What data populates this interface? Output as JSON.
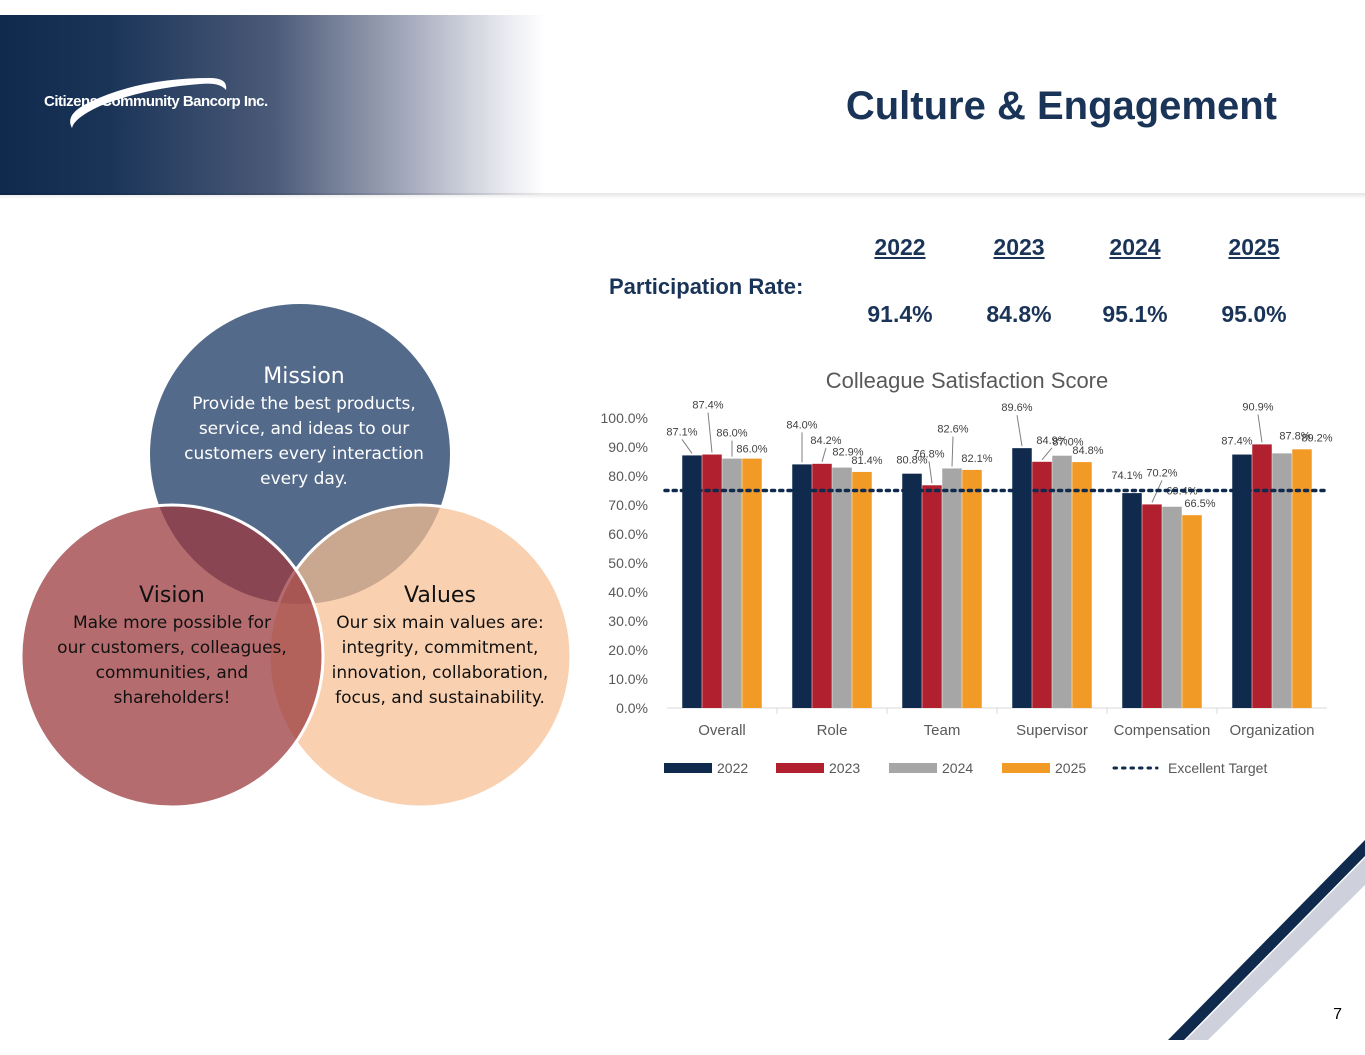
{
  "header": {
    "logo_text": "Citizens Community Bancorp Inc.",
    "title": "Culture & Engagement"
  },
  "participation": {
    "label": "Participation Rate:",
    "years": [
      "2022",
      "2023",
      "2024",
      "2025"
    ],
    "rates": [
      "91.4%",
      "84.8%",
      "95.1%",
      "95.0%"
    ]
  },
  "venn": {
    "mission": {
      "title": "Mission",
      "lines": [
        "Provide the best products,",
        "service, and ideas to our",
        "customers every interaction",
        "every day."
      ],
      "color": "#3c557a"
    },
    "vision": {
      "title": "Vision",
      "lines": [
        "Make more possible for",
        "our customers, colleagues,",
        "communities, and",
        "shareholders!"
      ],
      "color": "#9b3b3f"
    },
    "values": {
      "title": "Values",
      "lines": [
        "Our six main values are:",
        "integrity, commitment,",
        "innovation, collaboration,",
        "focus, and sustainability."
      ],
      "color": "#f8bf91"
    }
  },
  "chart_data": {
    "type": "bar",
    "title": "Colleague Satisfaction Score",
    "categories": [
      "Overall",
      "Role",
      "Team",
      "Supervisor",
      "Compensation",
      "Organization"
    ],
    "series": [
      {
        "name": "2022",
        "color": "#0f2a4d",
        "values": [
          87.1,
          84.0,
          80.8,
          89.6,
          74.1,
          87.4
        ]
      },
      {
        "name": "2023",
        "color": "#b0202e",
        "values": [
          87.4,
          84.2,
          76.8,
          84.9,
          70.2,
          90.9
        ]
      },
      {
        "name": "2024",
        "color": "#a6a6a6",
        "values": [
          86.0,
          82.9,
          82.6,
          87.0,
          69.4,
          87.8
        ]
      },
      {
        "name": "2025",
        "color": "#f29a26",
        "values": [
          86.0,
          81.4,
          82.1,
          84.8,
          66.5,
          89.2
        ]
      }
    ],
    "labels": [
      [
        "87.1%",
        "87.4%",
        "86.0%",
        "86.0%"
      ],
      [
        "84.0%",
        "84.2%",
        "82.9%",
        "81.4%"
      ],
      [
        "80.8%",
        "76.8%",
        "82.6%",
        "82.1%"
      ],
      [
        "89.6%",
        "84.9%",
        "87.0%",
        "84.8%"
      ],
      [
        "74.1%",
        "70.2%",
        "69.4%",
        "66.5%"
      ],
      [
        "87.4%",
        "90.9%",
        "87.8%",
        "89.2%"
      ]
    ],
    "target": {
      "name": "Excellent Target",
      "value": 75.0,
      "color": "#0f2a4d"
    },
    "yticks": [
      "0.0%",
      "10.0%",
      "20.0%",
      "30.0%",
      "40.0%",
      "50.0%",
      "60.0%",
      "70.0%",
      "80.0%",
      "90.0%",
      "100.0%"
    ],
    "ylim": [
      0,
      100
    ],
    "legend_position": "bottom"
  },
  "page_number": "7"
}
